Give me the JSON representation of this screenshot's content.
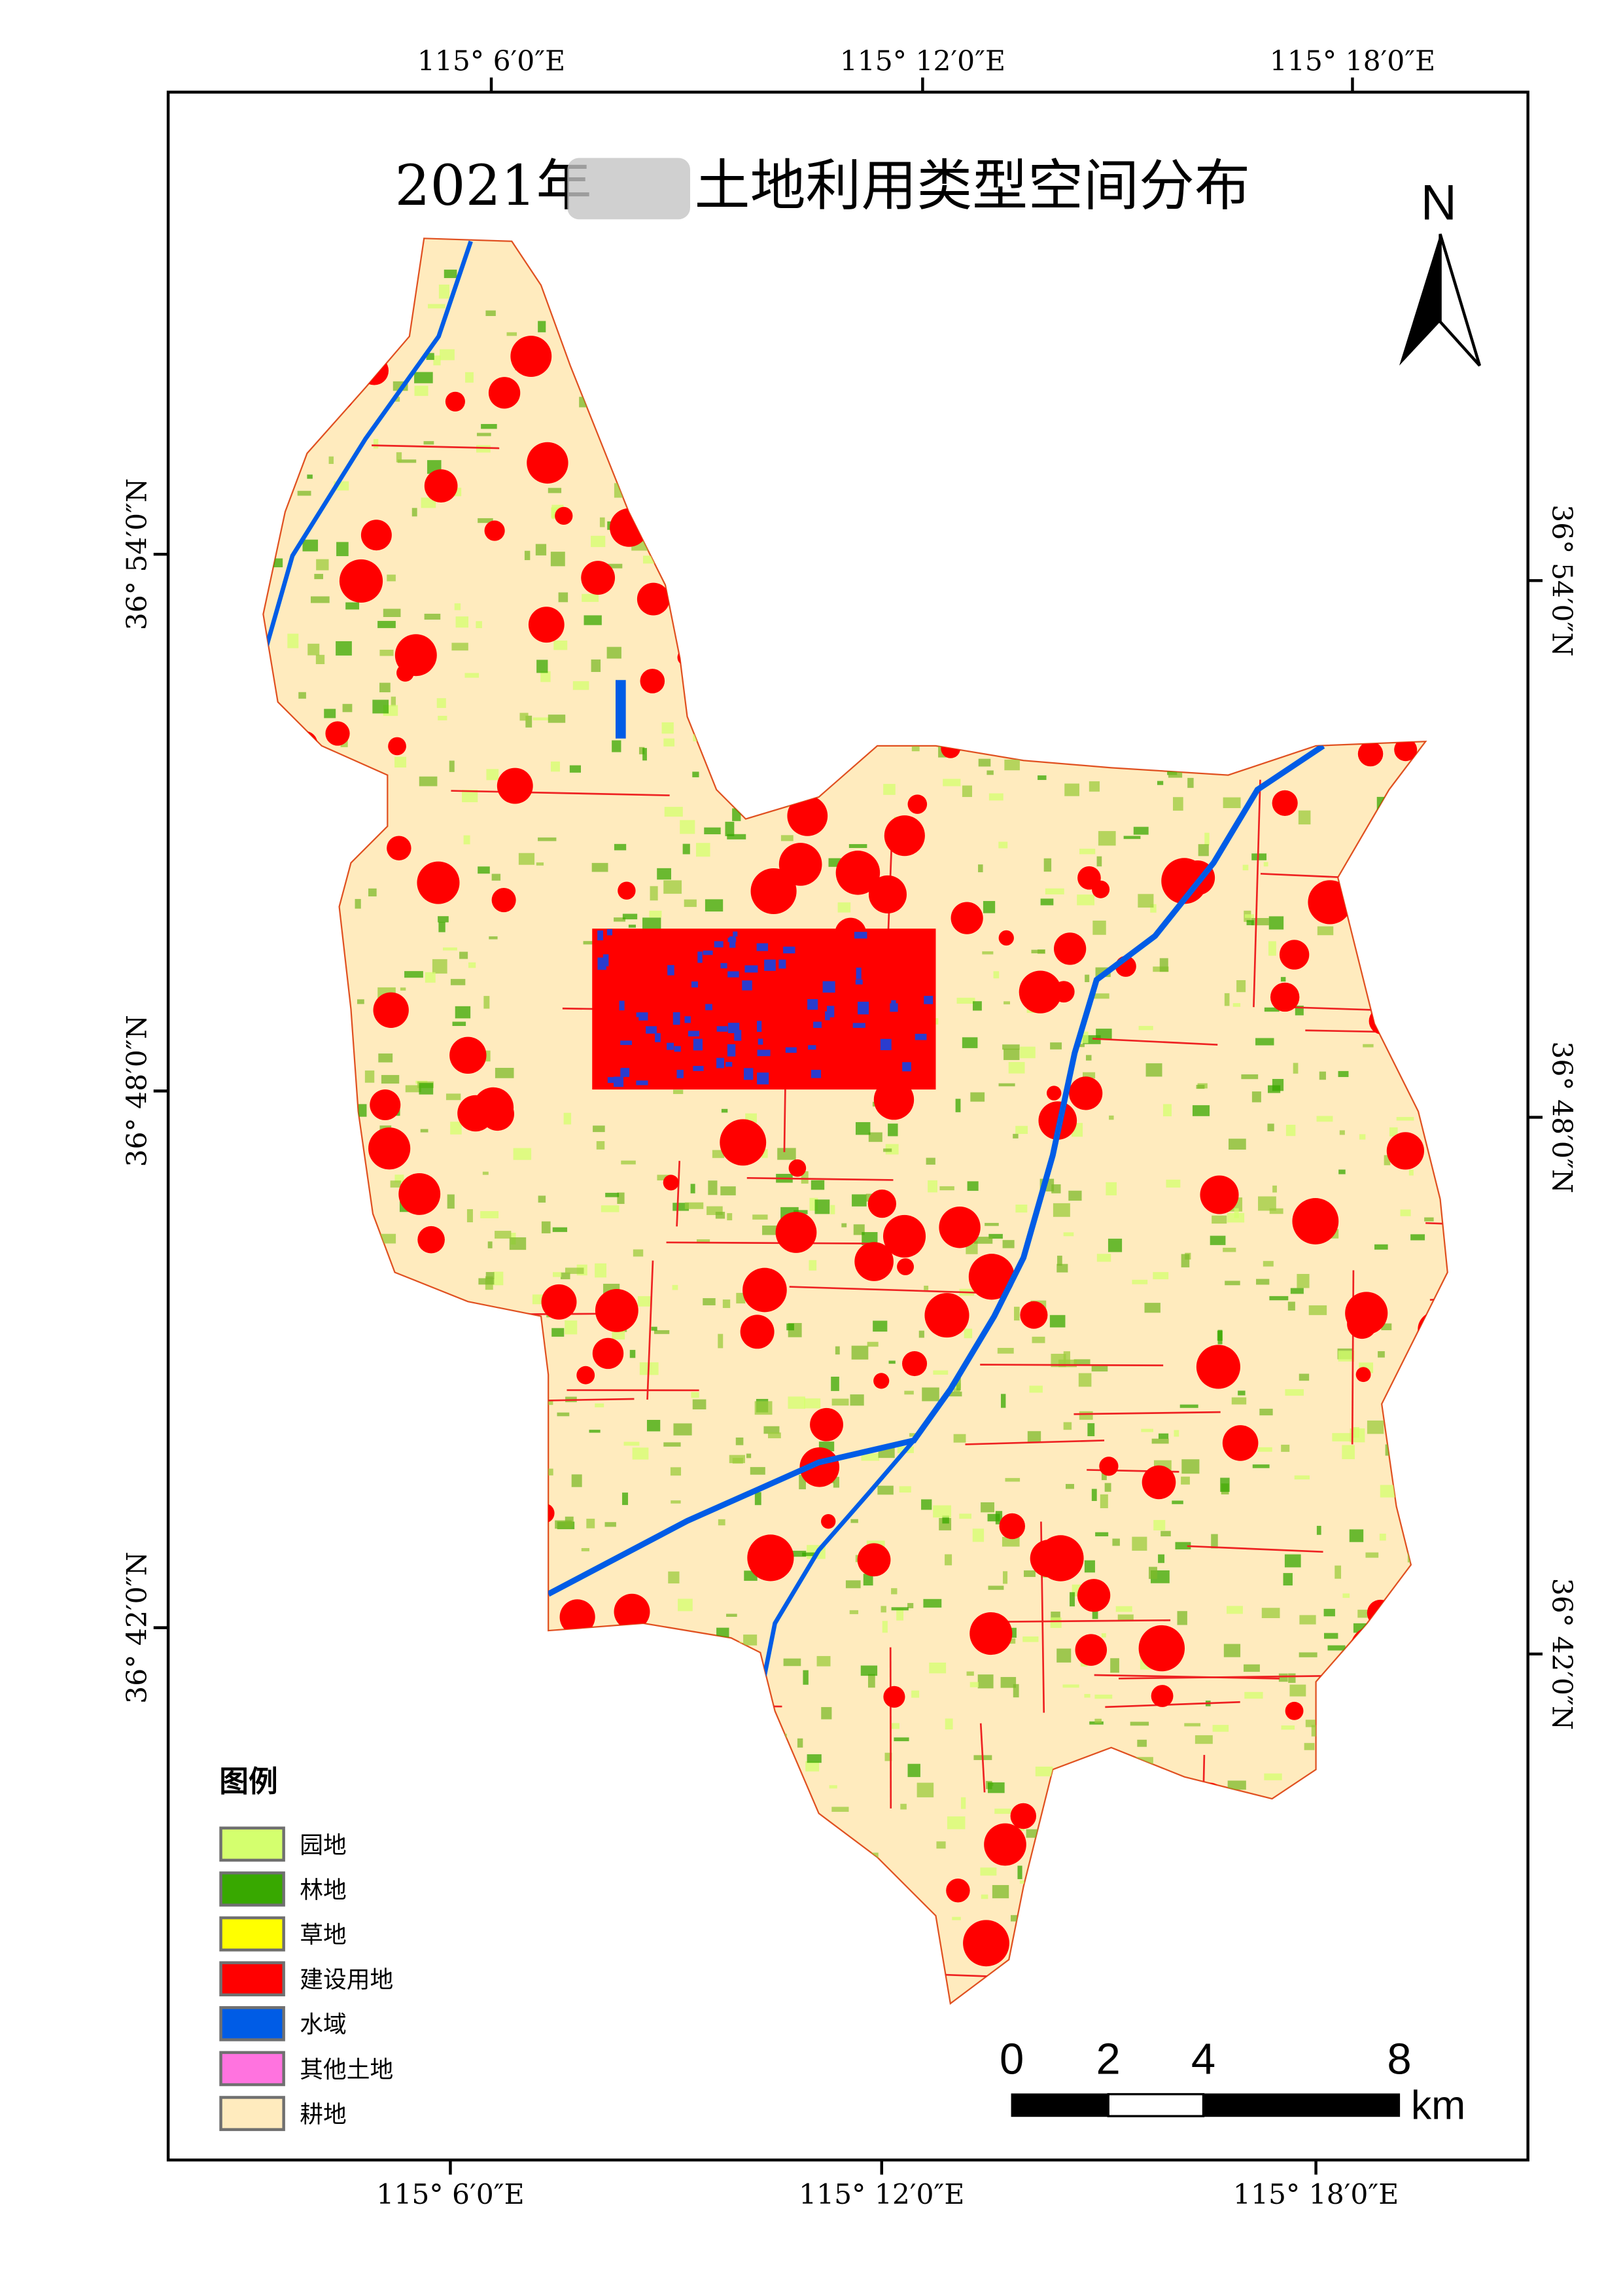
{
  "title": {
    "prefix": "2021年",
    "suffix": "土地利用类型空间分布",
    "redacted_region_name": true
  },
  "graticule": {
    "top_labels": [
      "115° 6′0″E",
      "115° 12′0″E",
      "115° 18′0″E"
    ],
    "bottom_labels": [
      "115° 6′0″E",
      "115° 12′0″E",
      "115° 18′0″E"
    ],
    "left_labels": [
      "36° 54′0″N",
      "36° 48′0″N",
      "36° 42′0″N"
    ],
    "right_labels": [
      "36° 54′0″N",
      "36° 48′0″N",
      "36° 42′0″N"
    ]
  },
  "north_arrow": {
    "label": "N",
    "icon": "north-arrow-icon"
  },
  "legend": {
    "title": "图例",
    "items": [
      {
        "label": "园地",
        "color": "#D4FF6E"
      },
      {
        "label": "林地",
        "color": "#38A800"
      },
      {
        "label": "草地",
        "color": "#FFFF00"
      },
      {
        "label": "建设用地",
        "color": "#FF0000"
      },
      {
        "label": "水域",
        "color": "#005CE6"
      },
      {
        "label": "其他土地",
        "color": "#FF73DF"
      },
      {
        "label": "耕地",
        "color": "#FFEBBE"
      }
    ]
  },
  "scale_bar": {
    "ticks": [
      "0",
      "2",
      "4",
      "8"
    ],
    "unit": "km"
  }
}
